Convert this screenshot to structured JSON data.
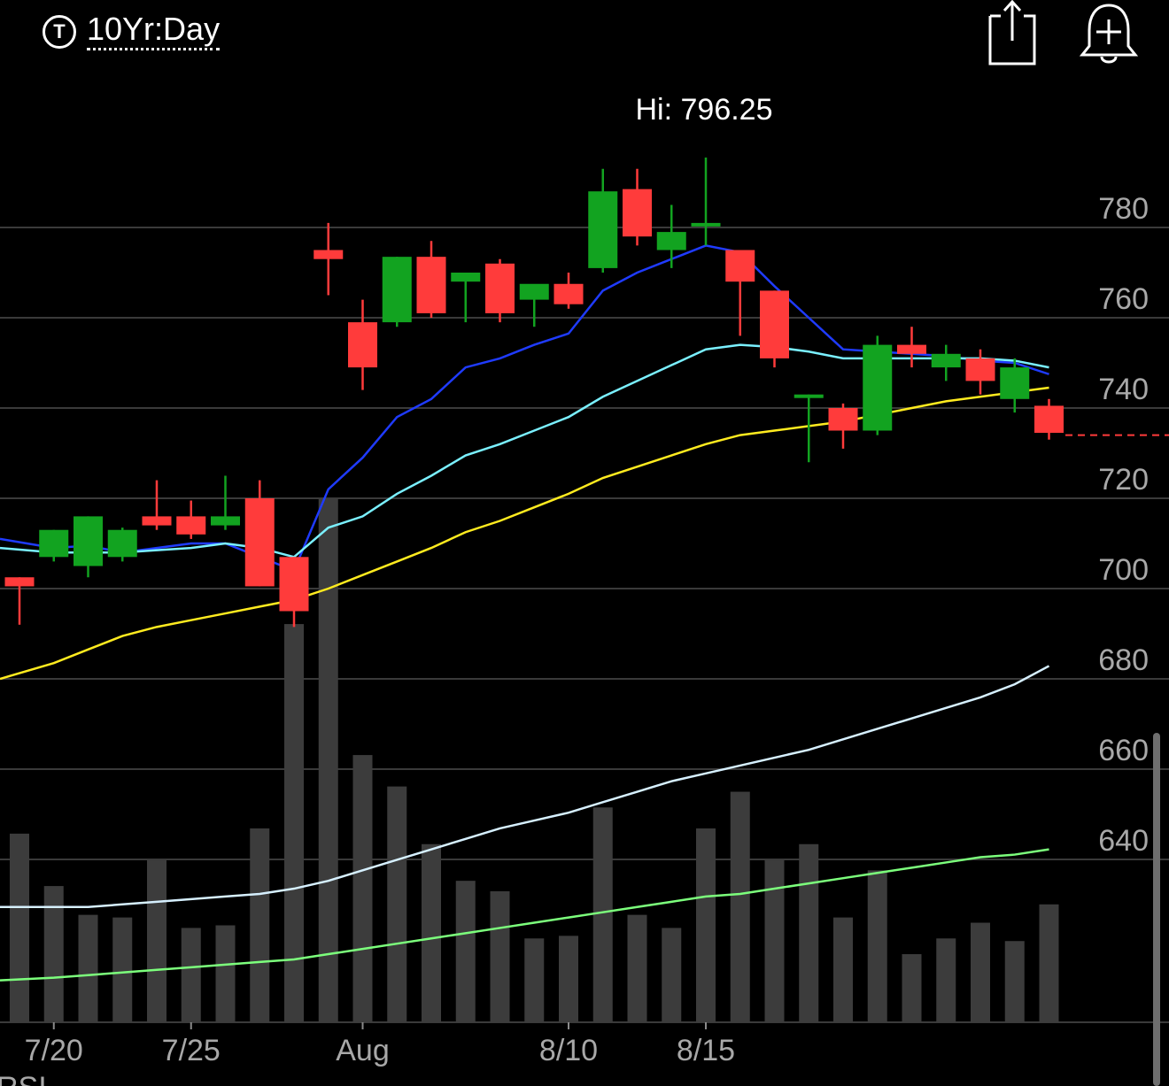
{
  "header": {
    "timeframe_icon": "T",
    "timeframe_label": "10Yr:Day",
    "share_icon": "share-icon",
    "alert_icon": "add-alert-icon"
  },
  "chart_data": {
    "type": "candlestick",
    "hi_label": "Hi: 796.25",
    "last_price": 734,
    "ylim": [
      625,
      800
    ],
    "y_ticks": [
      640,
      660,
      680,
      700,
      720,
      740,
      760,
      780
    ],
    "x_tick_labels": [
      {
        "label": "7/20",
        "index": 1
      },
      {
        "label": "7/25",
        "index": 5
      },
      {
        "label": "Aug",
        "index": 10
      },
      {
        "label": "8/10",
        "index": 16
      },
      {
        "label": "8/15",
        "index": 20
      }
    ],
    "candles": [
      {
        "o": 702.5,
        "h": 702.5,
        "l": 692,
        "c": 700.5
      },
      {
        "o": 707,
        "h": 713,
        "l": 706,
        "c": 713
      },
      {
        "o": 705,
        "h": 716,
        "l": 702.5,
        "c": 716
      },
      {
        "o": 707,
        "h": 713.5,
        "l": 706,
        "c": 713
      },
      {
        "o": 716,
        "h": 724,
        "l": 713,
        "c": 714
      },
      {
        "o": 716,
        "h": 719.5,
        "l": 711,
        "c": 712
      },
      {
        "o": 714,
        "h": 725,
        "l": 713,
        "c": 716
      },
      {
        "o": 720,
        "h": 724,
        "l": 700.5,
        "c": 700.5
      },
      {
        "o": 707,
        "h": 707,
        "l": 691.5,
        "c": 695
      },
      {
        "o": 775,
        "h": 781,
        "l": 765,
        "c": 773
      },
      {
        "o": 759,
        "h": 764,
        "l": 744,
        "c": 749
      },
      {
        "o": 759,
        "h": 773.5,
        "l": 758,
        "c": 773.5
      },
      {
        "o": 773.5,
        "h": 777,
        "l": 760,
        "c": 761
      },
      {
        "o": 768,
        "h": 770,
        "l": 759,
        "c": 770
      },
      {
        "o": 772,
        "h": 773,
        "l": 759,
        "c": 761
      },
      {
        "o": 764,
        "h": 766,
        "l": 758,
        "c": 767.5
      },
      {
        "o": 767.5,
        "h": 770,
        "l": 762,
        "c": 763
      },
      {
        "o": 771,
        "h": 793,
        "l": 770,
        "c": 788
      },
      {
        "o": 788.5,
        "h": 793,
        "l": 776,
        "c": 778
      },
      {
        "o": 775,
        "h": 785,
        "l": 771,
        "c": 779
      },
      {
        "o": 781,
        "h": 795.5,
        "l": 776,
        "c": 781
      },
      {
        "o": 775,
        "h": 775,
        "l": 756,
        "c": 768
      },
      {
        "o": 766,
        "h": 766,
        "l": 749,
        "c": 751
      },
      {
        "o": 743,
        "h": 743,
        "l": 728,
        "c": 743
      },
      {
        "o": 740,
        "h": 741,
        "l": 731,
        "c": 735
      },
      {
        "o": 735,
        "h": 756,
        "l": 734,
        "c": 754
      },
      {
        "o": 754,
        "h": 758,
        "l": 749,
        "c": 752
      },
      {
        "o": 749,
        "h": 754,
        "l": 746,
        "c": 752
      },
      {
        "o": 751,
        "h": 753,
        "l": 743,
        "c": 746
      },
      {
        "o": 742,
        "h": 751,
        "l": 739,
        "c": 749
      },
      {
        "o": 740.5,
        "h": 742,
        "l": 733,
        "c": 734.5
      }
    ],
    "ma_series": [
      {
        "color": "#1f3bff",
        "values": [
          711,
          709,
          709.5,
          708,
          709,
          710,
          710,
          707,
          704,
          722,
          729,
          738,
          742,
          749,
          751,
          754,
          756.5,
          766,
          770,
          773,
          776,
          774.5,
          767,
          760,
          753,
          752.5,
          752,
          751.5,
          750.5,
          750,
          747.5
        ]
      },
      {
        "color": "#7af0ff",
        "values": [
          709,
          708,
          708,
          708,
          708.5,
          709,
          710,
          709,
          707,
          713.5,
          716,
          721,
          725,
          729.5,
          732,
          735,
          738,
          742.5,
          746,
          749.5,
          753,
          754,
          753.5,
          752.5,
          751,
          751,
          751,
          751,
          751,
          750.5,
          749
        ]
      },
      {
        "color": "#ffeb1f",
        "values": [
          680,
          683.5,
          686.5,
          689.5,
          691.5,
          693,
          694.5,
          696,
          697.5,
          700,
          703,
          706,
          709,
          712.5,
          715,
          718,
          721,
          724.5,
          727,
          729.5,
          732,
          734,
          735,
          736,
          737,
          738.5,
          740,
          741.5,
          742.5,
          743.5,
          744.5
        ]
      }
    ],
    "volume": {
      "max": 100,
      "values": [
        36,
        26,
        20.5,
        20,
        31,
        18,
        18.5,
        37,
        76,
        100,
        51,
        45,
        34,
        27,
        25,
        16,
        16.5,
        41,
        20.5,
        18,
        37,
        44,
        31,
        34,
        20,
        29,
        13,
        16,
        19,
        15.5,
        22.5
      ]
    },
    "volume_ma_series": [
      {
        "color": "#d6f0ff",
        "values": [
          22,
          22,
          22,
          22.5,
          23,
          23.5,
          24,
          24.5,
          25.5,
          27,
          29,
          31,
          33,
          35,
          37,
          38.5,
          40,
          42,
          44,
          46,
          47.5,
          49,
          50.5,
          52,
          54,
          56,
          58,
          60,
          62,
          64.5,
          68
        ]
      },
      {
        "color": "#7cff7c",
        "values": [
          8,
          8.5,
          9,
          9.5,
          10,
          10.5,
          11,
          11.5,
          12,
          13,
          14,
          15,
          16,
          17,
          18,
          19,
          20,
          21,
          22,
          23,
          24,
          24.5,
          25.5,
          26.5,
          27.5,
          28.5,
          29.5,
          30.5,
          31.5,
          32,
          33
        ]
      }
    ],
    "lower_panel_label": "RSI"
  }
}
